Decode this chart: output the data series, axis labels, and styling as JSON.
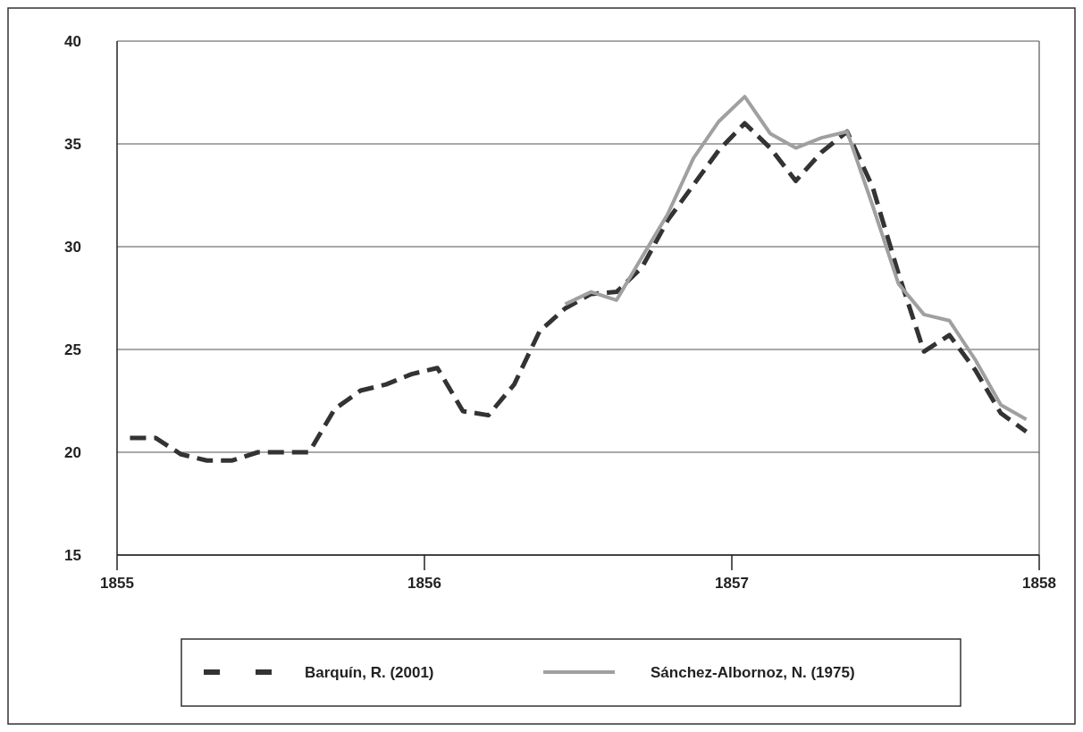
{
  "chart_data": {
    "type": "line",
    "x": [
      1855.042,
      1855.125,
      1855.208,
      1855.292,
      1855.375,
      1855.458,
      1855.542,
      1855.625,
      1855.708,
      1855.792,
      1855.875,
      1855.958,
      1856.042,
      1856.125,
      1856.208,
      1856.292,
      1856.375,
      1856.458,
      1856.542,
      1856.625,
      1856.708,
      1856.792,
      1856.875,
      1856.958,
      1857.042,
      1857.125,
      1857.208,
      1857.292,
      1857.375,
      1857.458,
      1857.542,
      1857.625,
      1857.708,
      1857.792,
      1857.875,
      1857.958
    ],
    "series": [
      {
        "name": "Barquín, R. (2001)",
        "color": "#333333",
        "line_style": "dashed",
        "values": [
          20.7,
          20.7,
          19.9,
          19.6,
          19.6,
          20.0,
          20.0,
          20.0,
          22.1,
          23.0,
          23.3,
          23.8,
          24.1,
          22.0,
          21.8,
          23.3,
          25.9,
          27.0,
          27.7,
          27.8,
          29.0,
          31.3,
          33.0,
          34.7,
          36.0,
          34.8,
          33.2,
          34.6,
          35.6,
          32.9,
          28.7,
          24.9,
          25.7,
          24.0,
          21.9,
          21.0
        ]
      },
      {
        "name": "Sánchez-Albornoz, N. (1975)",
        "color": "#a0a0a0",
        "line_style": "solid",
        "values": [
          null,
          null,
          null,
          null,
          null,
          null,
          null,
          null,
          null,
          null,
          null,
          null,
          null,
          null,
          null,
          null,
          null,
          27.2,
          27.8,
          27.4,
          29.5,
          31.6,
          34.3,
          36.1,
          37.3,
          35.5,
          34.8,
          35.3,
          35.6,
          32.0,
          28.2,
          26.7,
          26.4,
          24.5,
          22.3,
          21.6
        ]
      }
    ],
    "xlim": [
      1855,
      1858
    ],
    "xticks": [
      1855,
      1856,
      1857,
      1858
    ],
    "ylim": [
      15,
      40
    ],
    "yticks": [
      15,
      20,
      25,
      30,
      35,
      40
    ],
    "grid": "y",
    "legend": "bottom",
    "marker": "none"
  }
}
